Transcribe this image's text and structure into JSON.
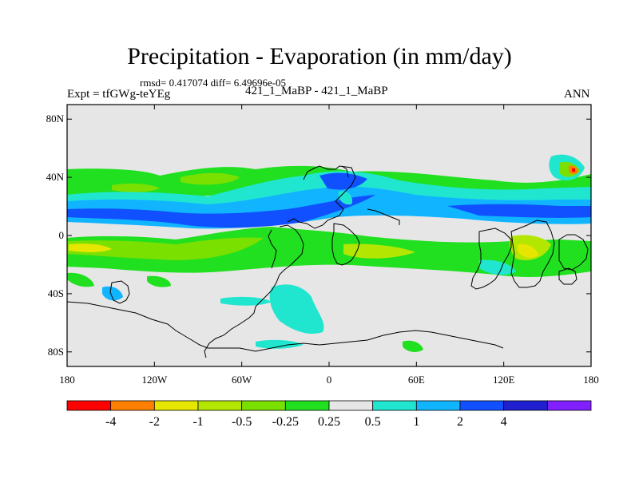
{
  "title": "Precipitation - Evaporation (in mm/day)",
  "stats_line": "rmsd= 0.417074  diff= 6.49696e-05",
  "experiment": "Expt = tfGWg-teYEg",
  "cases": "421_1_MaBP - 421_1_MaBP",
  "season": "ANN",
  "map": {
    "background_color": "#e6e6e6",
    "lat_ticks": [
      {
        "value": 80,
        "label": "80N"
      },
      {
        "value": 40,
        "label": "40N"
      },
      {
        "value": 0,
        "label": "0"
      },
      {
        "value": -40,
        "label": "40S"
      },
      {
        "value": -80,
        "label": "80S"
      }
    ],
    "lon_ticks": [
      {
        "value": -180,
        "label": "180"
      },
      {
        "value": -120,
        "label": "120W"
      },
      {
        "value": -60,
        "label": "60W"
      },
      {
        "value": 0,
        "label": "0"
      },
      {
        "value": 60,
        "label": "60E"
      },
      {
        "value": 120,
        "label": "120E"
      },
      {
        "value": 180,
        "label": "180"
      }
    ]
  },
  "colorbar": {
    "colors": [
      "#ff0000",
      "#ff8000",
      "#e6e600",
      "#b3e600",
      "#7ae000",
      "#20e020",
      "#e6e6e6",
      "#20e6d0",
      "#10b4ff",
      "#1050ff",
      "#2020d0",
      "#8020ff"
    ],
    "labels": [
      "-4",
      "-2",
      "-1",
      "-0.5",
      "-0.25",
      "0.25",
      "0.5",
      "1",
      "2",
      "4"
    ]
  }
}
